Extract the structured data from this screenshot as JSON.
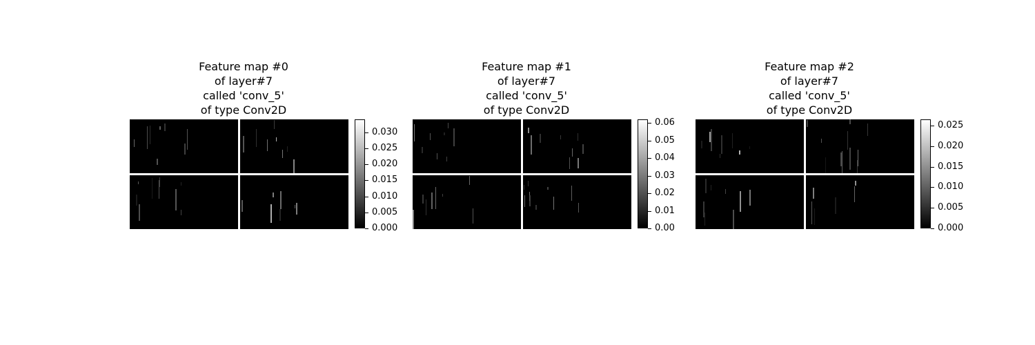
{
  "panels": [
    {
      "title_lines": [
        "Feature map #0",
        "of layer#7",
        "called 'conv_5'",
        "of type Conv2D"
      ],
      "colorbar_ticks": [
        "0.000",
        "0.005",
        "0.010",
        "0.015",
        "0.020",
        "0.025",
        "0.030"
      ]
    },
    {
      "title_lines": [
        "Feature map #1",
        "of layer#7",
        "called 'conv_5'",
        "of type Conv2D"
      ],
      "colorbar_ticks": [
        "0.00",
        "0.01",
        "0.02",
        "0.03",
        "0.04",
        "0.05",
        "0.06"
      ]
    },
    {
      "title_lines": [
        "Feature map #2",
        "of layer#7",
        "called 'conv_5'",
        "of type Conv2D"
      ],
      "colorbar_ticks": [
        "0.000",
        "0.005",
        "0.010",
        "0.015",
        "0.020",
        "0.025"
      ]
    }
  ],
  "chart_data": [
    {
      "type": "heatmap",
      "title": "Feature map #0\nof layer#7\ncalled 'conv_5'\nof type Conv2D",
      "grid": "2x2 tiles",
      "colormap": "gray",
      "colorbar_range": [
        0.0,
        0.034
      ],
      "colorbar_ticks": [
        0.0,
        0.005,
        0.01,
        0.015,
        0.02,
        0.025,
        0.03
      ]
    },
    {
      "type": "heatmap",
      "title": "Feature map #1\nof layer#7\ncalled 'conv_5'\nof type Conv2D",
      "grid": "2x2 tiles",
      "colormap": "gray",
      "colorbar_range": [
        0.0,
        0.062
      ],
      "colorbar_ticks": [
        0.0,
        0.01,
        0.02,
        0.03,
        0.04,
        0.05,
        0.06
      ]
    },
    {
      "type": "heatmap",
      "title": "Feature map #2\nof layer#7\ncalled 'conv_5'\nof type Conv2D",
      "grid": "2x2 tiles",
      "colormap": "gray",
      "colorbar_range": [
        0.0,
        0.0265
      ],
      "colorbar_ticks": [
        0.0,
        0.005,
        0.01,
        0.015,
        0.02,
        0.025
      ]
    }
  ]
}
